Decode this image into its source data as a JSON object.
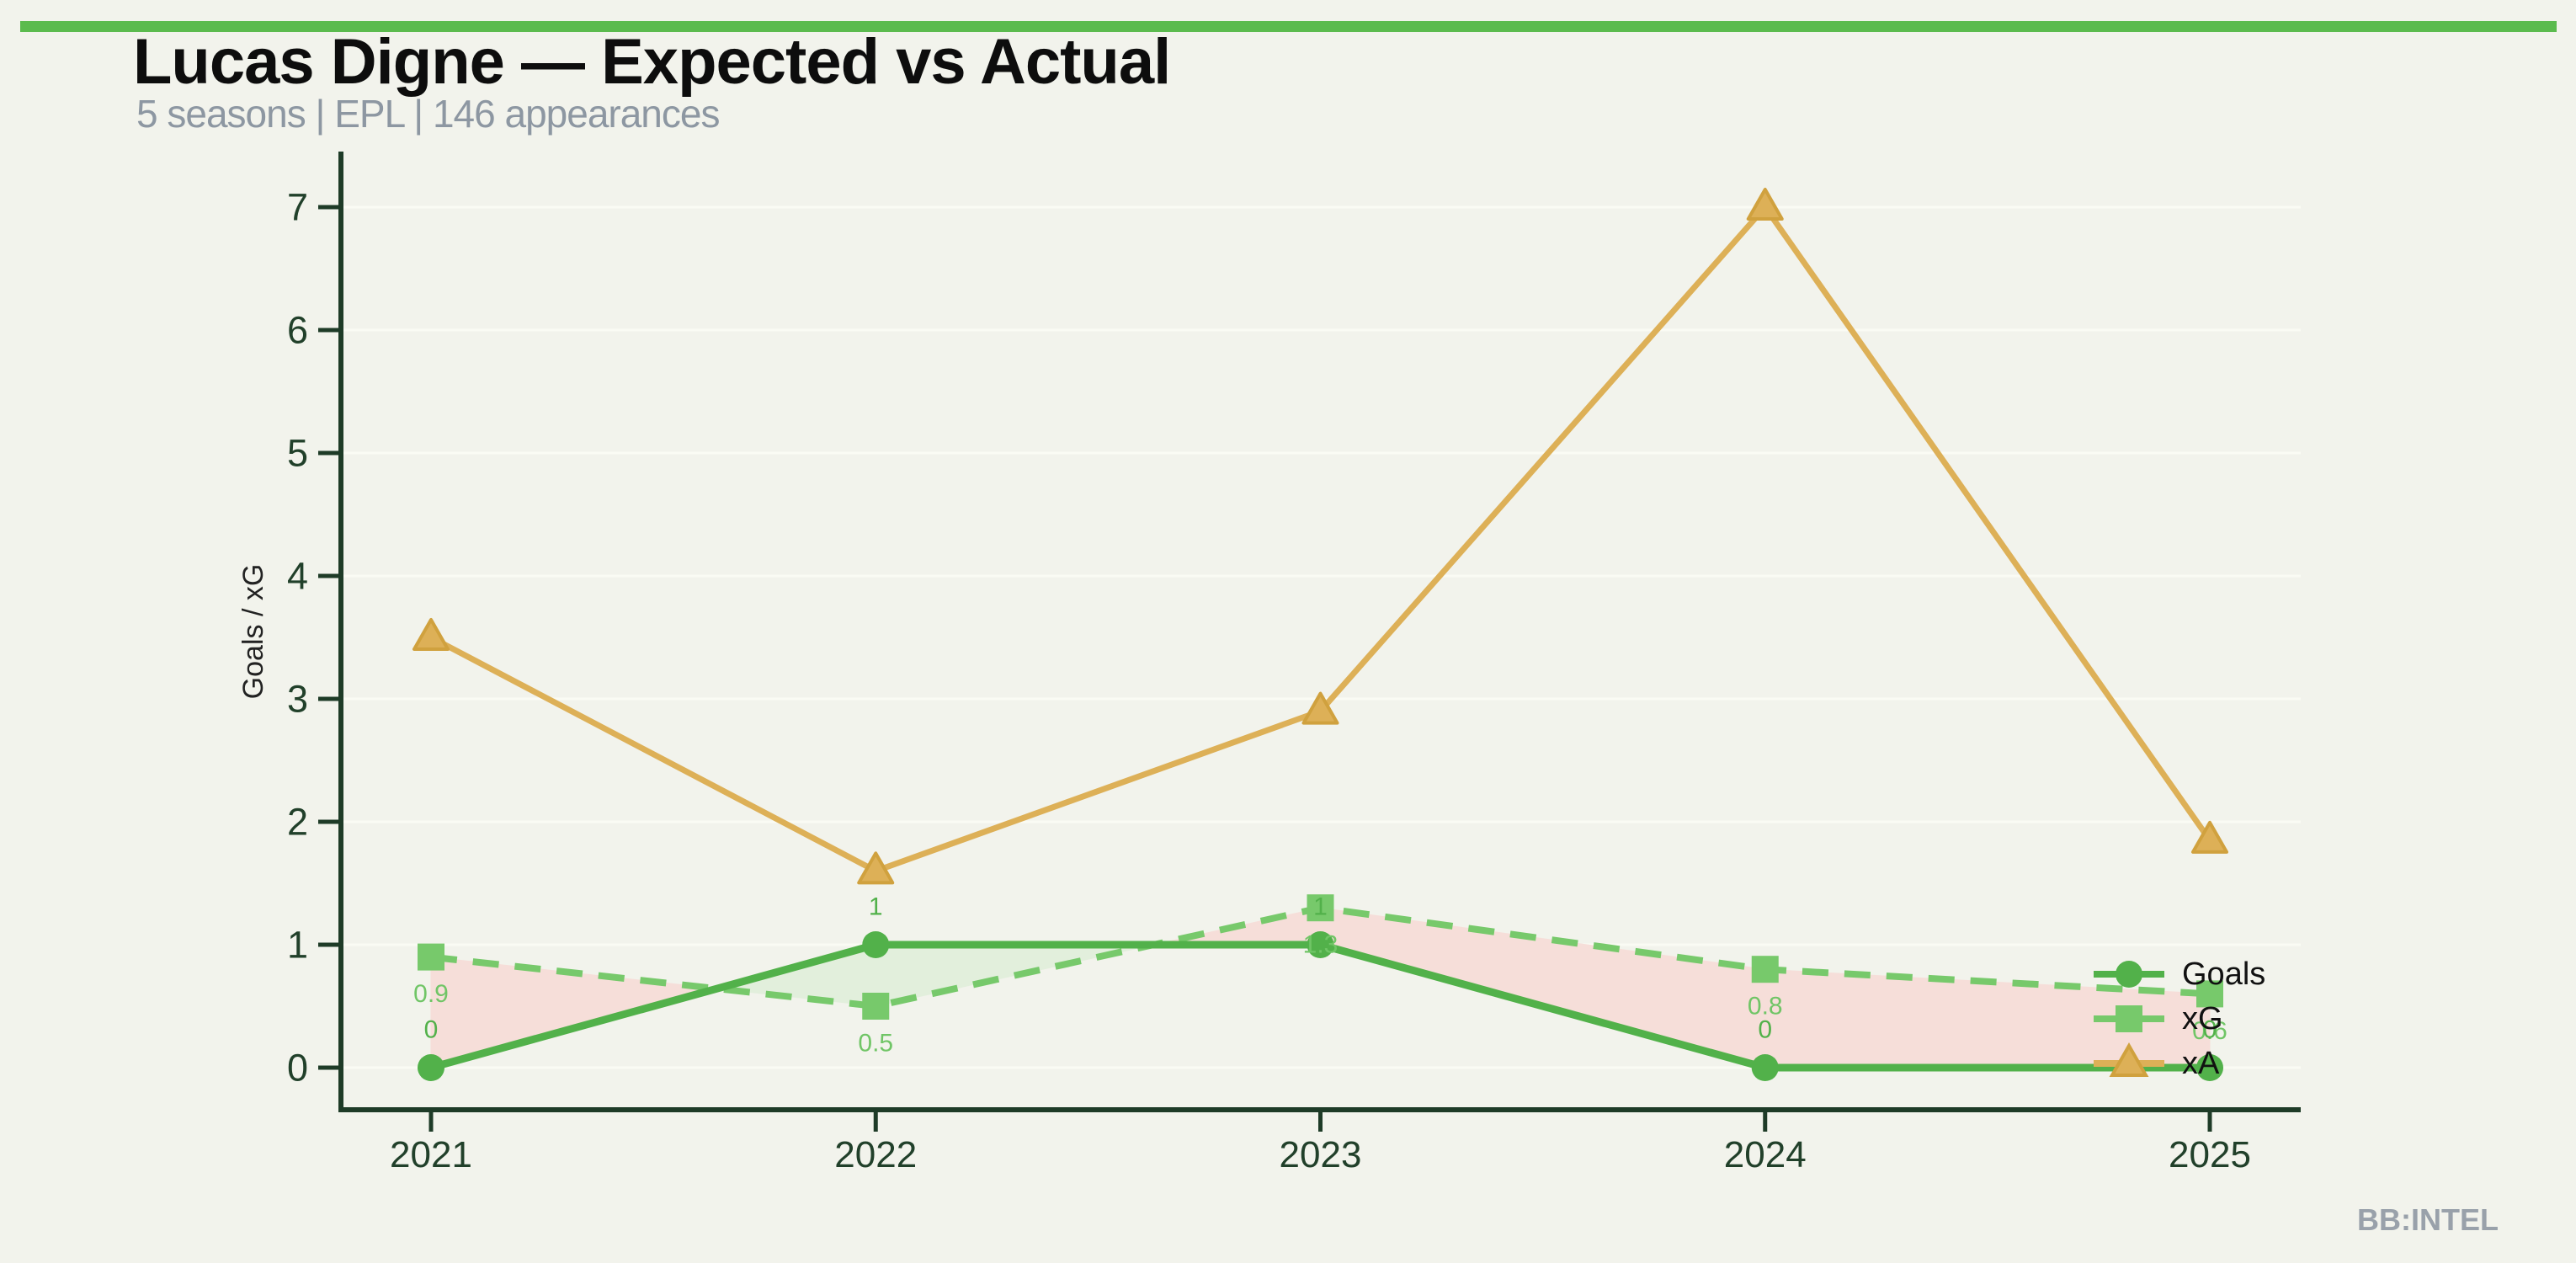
{
  "header": {
    "title": "Lucas Digne — Expected vs Actual",
    "subtitle": "5 seasons | EPL | 146 appearances"
  },
  "watermark": "BB:INTEL",
  "colors": {
    "top_bar": "#5bbb4e",
    "background": "#f2f3ec",
    "goals": "#52b14a",
    "xg": "#77c96b",
    "xa": "#ddb057",
    "xa_edge": "#d0a13e",
    "fill_over_green": "#e2efdc",
    "fill_under_pink": "#f6ded9",
    "axis": "#1e3b27",
    "tick_label": "#21402a",
    "grid": "#fafbf4",
    "goals_label": "#52b14a",
    "xg_label": "#70c566",
    "legend_text": "#111111",
    "axis_title": "#222222"
  },
  "chart_data": {
    "type": "line",
    "title": "Lucas Digne — Expected vs Actual",
    "subtitle": "5 seasons | EPL | 146 appearances",
    "x": [
      "2021",
      "2022",
      "2023",
      "2024",
      "2025"
    ],
    "xlabel": "",
    "ylabel": "Goals / xG",
    "ylim": [
      0,
      7
    ],
    "yticks": [
      0,
      1,
      2,
      3,
      4,
      5,
      6,
      7
    ],
    "grid": "horizontal-faint",
    "legend_position": "right-inside",
    "series": [
      {
        "name": "Goals",
        "marker": "circle",
        "line": "solid",
        "color_key": "goals",
        "values": [
          0,
          1,
          1,
          0,
          0
        ],
        "labels": [
          "0",
          "1",
          "1",
          "0",
          "0"
        ],
        "label_side": "above"
      },
      {
        "name": "xG",
        "marker": "square",
        "line": "dashed",
        "color_key": "xg",
        "values": [
          0.9,
          0.5,
          1.3,
          0.8,
          0.6
        ],
        "labels": [
          "0.9",
          "0.5",
          "1.3",
          "0.8",
          "0.6"
        ],
        "label_side": "below"
      },
      {
        "name": "xA",
        "marker": "triangle",
        "line": "solid",
        "color_key": "xa",
        "values": [
          3.5,
          1.6,
          2.9,
          7.0,
          1.85
        ],
        "labels": [
          "",
          "",
          "",
          "",
          ""
        ],
        "label_side": "none"
      }
    ],
    "fill_between": {
      "upper_series": "Goals",
      "lower_series": "xG",
      "goals_above_color": "fill_over_green",
      "xg_above_color": "fill_under_pink"
    }
  }
}
